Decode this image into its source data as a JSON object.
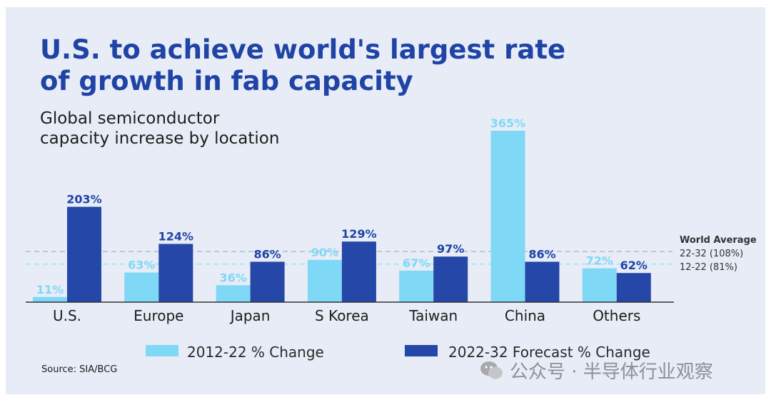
{
  "header": {
    "title_line1": "U.S. to achieve world's largest rate",
    "title_line2": "of growth in fab capacity",
    "subtitle_line1": "Global semiconductor",
    "subtitle_line2": "capacity increase by location"
  },
  "source": "Source: SIA/BCG",
  "watermark": "公众号 · 半导体行业观察",
  "colors": {
    "series1": "#7fd8f6",
    "series2": "#2447a8",
    "avg1_line": "#9fb0da",
    "avg2_line": "#8fe1f7"
  },
  "chart_data": {
    "type": "bar",
    "title": "Global semiconductor capacity increase by location",
    "categories": [
      "U.S.",
      "Europe",
      "Japan",
      "S Korea",
      "Taiwan",
      "China",
      "Others"
    ],
    "series": [
      {
        "name": "2012-22 % Change",
        "values": [
          11,
          63,
          36,
          90,
          67,
          365,
          72
        ],
        "labels": [
          "11%",
          "63%",
          "36%",
          "90%",
          "67%",
          "365%",
          "72%"
        ]
      },
      {
        "name": "2022-32 Forecast % Change",
        "values": [
          203,
          124,
          86,
          129,
          97,
          86,
          62
        ],
        "labels": [
          "203%",
          "124%",
          "86%",
          "129%",
          "97%",
          "86%",
          "62%"
        ]
      }
    ],
    "reference_lines": {
      "title": "World Average",
      "items": [
        {
          "label": "22-32 (108%)",
          "value": 108
        },
        {
          "label": "12-22 (81%)",
          "value": 81
        }
      ]
    },
    "xlabel": "",
    "ylabel": "",
    "ylim": [
      0,
      390
    ],
    "legend_position": "bottom"
  }
}
